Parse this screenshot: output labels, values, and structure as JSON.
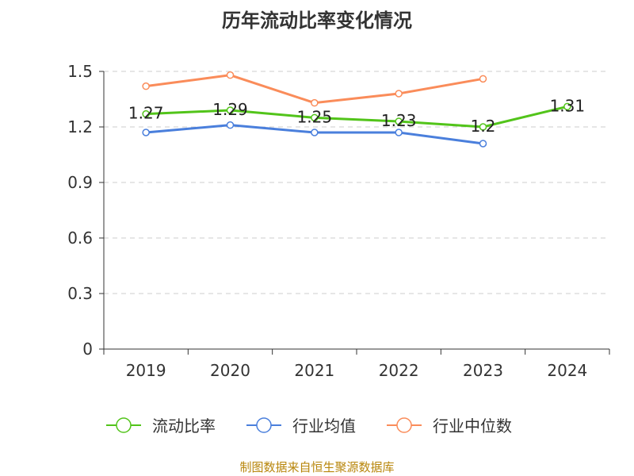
{
  "chart_data": {
    "type": "line",
    "title": "历年流动比率变化情况",
    "categories": [
      "2019",
      "2020",
      "2021",
      "2022",
      "2023",
      "2024"
    ],
    "ylim": [
      0,
      1.5
    ],
    "yticks": [
      "0",
      "0.3",
      "0.6",
      "0.9",
      "1.2",
      "1.5"
    ],
    "ytick_values": [
      0,
      0.3,
      0.6,
      0.9,
      1.2,
      1.5
    ],
    "grid": true,
    "legend_position": "bottom",
    "series": [
      {
        "name": "流动比率",
        "color": "#52c41a",
        "values": [
          1.27,
          1.29,
          1.25,
          1.23,
          1.2,
          1.31
        ],
        "labels": [
          "1.27",
          "1.29",
          "1.25",
          "1.23",
          "1.2",
          "1.31"
        ]
      },
      {
        "name": "行业均值",
        "color": "#4a7fdc",
        "values": [
          1.17,
          1.21,
          1.17,
          1.17,
          1.11,
          null
        ]
      },
      {
        "name": "行业中位数",
        "color": "#fa8c5a",
        "values": [
          1.42,
          1.48,
          1.33,
          1.38,
          1.46,
          null
        ]
      }
    ]
  },
  "footer": {
    "source": "制图数据来自恒生聚源数据库"
  }
}
